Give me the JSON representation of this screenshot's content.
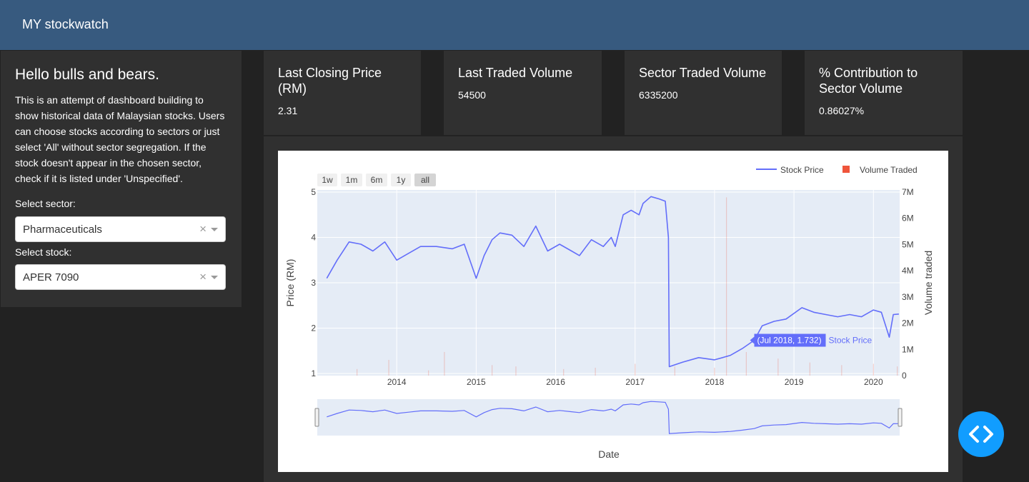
{
  "navbar": {
    "title": "MY stockwatch"
  },
  "sidebar": {
    "greeting": "Hello bulls and bears.",
    "intro": "This is an attempt of dashboard building to show historical data of Malaysian stocks. Users can choose stocks according to sectors or just select 'All' without sector segregation. If the stock doesn't appear in the chosen sector, check if it is listed under 'Unspecified'.",
    "sector_label": "Select sector:",
    "sector_value": "Pharmaceuticals",
    "stock_label": "Select stock:",
    "stock_value": "APER 7090",
    "clear_glyph": "×"
  },
  "cards": [
    {
      "title": "Last Closing Price (RM)",
      "value": "2.31"
    },
    {
      "title": "Last Traded Volume",
      "value": "54500"
    },
    {
      "title": "Sector Traded Volume",
      "value": "6335200"
    },
    {
      "title": "% Contribution to Sector Volume",
      "value": "0.86027%"
    }
  ],
  "chart": {
    "range_buttons": [
      "1w",
      "1m",
      "6m",
      "1y",
      "all"
    ],
    "active_range": "all",
    "hover_label": "(Jul 2018, 1.732)",
    "hover_series": "Stock Price"
  },
  "chart_data": {
    "type": "line",
    "xlabel": "Date",
    "ylabel": "Price (RM)",
    "y2label": "Volume traded",
    "ylim": [
      1,
      5
    ],
    "y2lim": [
      0,
      7000000
    ],
    "x_ticks": [
      "2014",
      "2015",
      "2016",
      "2017",
      "2018",
      "2019",
      "2020"
    ],
    "y_ticks": [
      "1",
      "2",
      "3",
      "4",
      "5"
    ],
    "y2_ticks": [
      "0",
      "1M",
      "2M",
      "3M",
      "4M",
      "5M",
      "6M",
      "7M"
    ],
    "legend": [
      "Stock Price",
      "Volume Traded"
    ],
    "colors": {
      "price": "#636efa",
      "volume": "#ef553b",
      "plot_bg": "#e5ecf6"
    },
    "series": [
      {
        "name": "Stock Price",
        "x": [
          2013.12,
          2013.25,
          2013.4,
          2013.55,
          2013.7,
          2013.85,
          2014.0,
          2014.15,
          2014.3,
          2014.5,
          2014.7,
          2014.85,
          2015.0,
          2015.1,
          2015.2,
          2015.3,
          2015.45,
          2015.6,
          2015.75,
          2015.9,
          2016.05,
          2016.2,
          2016.3,
          2016.45,
          2016.6,
          2016.7,
          2016.75,
          2016.85,
          2016.95,
          2017.05,
          2017.1,
          2017.2,
          2017.3,
          2017.38,
          2017.42,
          2017.43,
          2017.6,
          2017.8,
          2018.0,
          2018.1,
          2018.2,
          2018.35,
          2018.5,
          2018.6,
          2018.75,
          2018.9,
          2019.1,
          2019.25,
          2019.4,
          2019.55,
          2019.7,
          2019.85,
          2020.0,
          2020.1,
          2020.2,
          2020.25,
          2020.32
        ],
        "y": [
          3.1,
          3.5,
          3.9,
          3.85,
          3.7,
          3.9,
          3.5,
          3.65,
          3.8,
          3.8,
          3.75,
          3.85,
          3.1,
          3.6,
          3.95,
          4.1,
          4.05,
          3.8,
          4.25,
          3.7,
          3.85,
          3.7,
          3.6,
          3.95,
          3.8,
          4.0,
          3.8,
          4.5,
          4.6,
          4.5,
          4.75,
          4.9,
          4.85,
          4.8,
          4.0,
          1.15,
          1.25,
          1.35,
          1.3,
          1.35,
          1.4,
          1.55,
          1.732,
          2.05,
          2.15,
          2.2,
          2.45,
          2.35,
          2.3,
          2.25,
          2.3,
          2.25,
          2.4,
          2.35,
          1.8,
          2.3,
          2.31
        ]
      },
      {
        "name": "Volume Traded",
        "x": [
          2013.5,
          2013.9,
          2014.4,
          2014.6,
          2015.2,
          2015.5,
          2016.1,
          2016.5,
          2017.0,
          2017.5,
          2018.0,
          2018.15,
          2018.4,
          2018.8,
          2019.2,
          2019.6,
          2020.0,
          2020.3
        ],
        "y": [
          250000,
          600000,
          200000,
          900000,
          400000,
          350000,
          250000,
          300000,
          450000,
          350000,
          300000,
          6800000,
          900000,
          650000,
          500000,
          400000,
          450000,
          350000
        ]
      }
    ]
  }
}
